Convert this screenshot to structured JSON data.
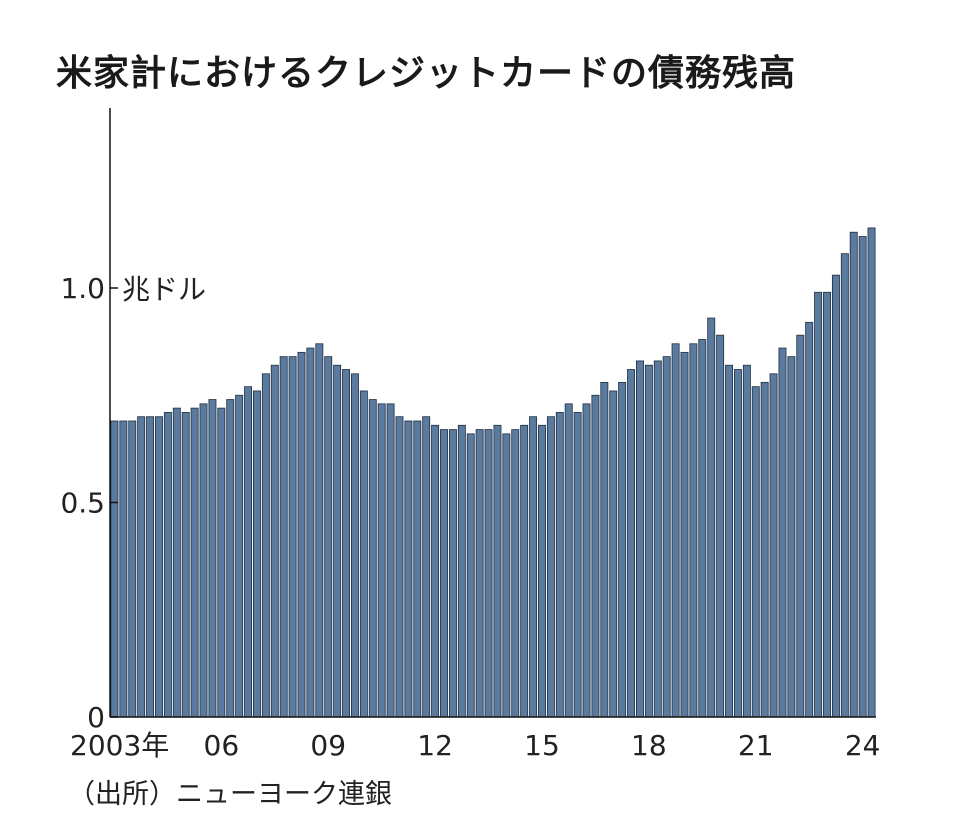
{
  "chart_data": {
    "type": "bar",
    "title": "米家計におけるクレジットカードの債務残高",
    "source": "（出所）ニューヨーク連銀",
    "ylim": [
      0,
      1.4
    ],
    "yticks": [
      {
        "value": 0,
        "label": "0"
      },
      {
        "value": 0.5,
        "label": "0.5"
      },
      {
        "value": 1.0,
        "label": "1.0"
      }
    ],
    "yunit": "兆ドル",
    "xticks": [
      {
        "index": 0,
        "label": "2003年"
      },
      {
        "index": 12,
        "label": "06"
      },
      {
        "index": 24,
        "label": "09"
      },
      {
        "index": 36,
        "label": "12"
      },
      {
        "index": 48,
        "label": "15"
      },
      {
        "index": 60,
        "label": "18"
      },
      {
        "index": 72,
        "label": "21"
      },
      {
        "index": 84,
        "label": "24"
      }
    ],
    "grid": false,
    "color": "#5a7a9e",
    "values": [
      0.69,
      0.69,
      0.69,
      0.7,
      0.7,
      0.7,
      0.71,
      0.72,
      0.71,
      0.72,
      0.73,
      0.74,
      0.72,
      0.74,
      0.75,
      0.77,
      0.76,
      0.8,
      0.82,
      0.84,
      0.84,
      0.85,
      0.86,
      0.87,
      0.84,
      0.82,
      0.81,
      0.8,
      0.76,
      0.74,
      0.73,
      0.73,
      0.7,
      0.69,
      0.69,
      0.7,
      0.68,
      0.67,
      0.67,
      0.68,
      0.66,
      0.67,
      0.67,
      0.68,
      0.66,
      0.67,
      0.68,
      0.7,
      0.68,
      0.7,
      0.71,
      0.73,
      0.71,
      0.73,
      0.75,
      0.78,
      0.76,
      0.78,
      0.81,
      0.83,
      0.82,
      0.83,
      0.84,
      0.87,
      0.85,
      0.87,
      0.88,
      0.93,
      0.89,
      0.82,
      0.81,
      0.82,
      0.77,
      0.78,
      0.8,
      0.86,
      0.84,
      0.89,
      0.92,
      0.99,
      0.99,
      1.03,
      1.08,
      1.13,
      1.12,
      1.14
    ]
  }
}
